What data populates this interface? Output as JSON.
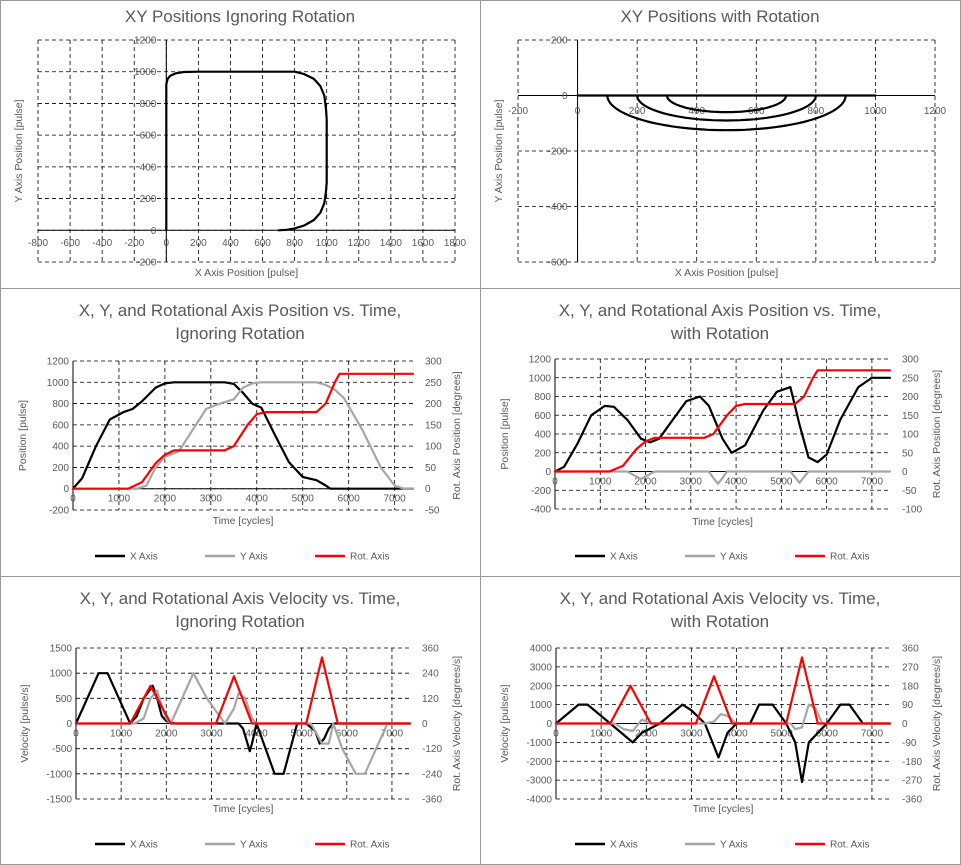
{
  "chart_data": [
    {
      "type": "line",
      "id": "xy-ignoring",
      "title": [
        "XY Positions Ignoring Rotation"
      ],
      "xlabel": "X Axis Position [pulse]",
      "ylabel": "Y Axis Position [pulse]",
      "xlim": [
        -800,
        1800
      ],
      "xticks": [
        -800,
        -600,
        -400,
        -200,
        0,
        200,
        400,
        600,
        800,
        1000,
        1200,
        1400,
        1600,
        1800
      ],
      "ylim": [
        -200,
        1200
      ],
      "yticks": [
        -200,
        0,
        200,
        400,
        600,
        800,
        1000,
        1200
      ],
      "grid": true,
      "series": [
        {
          "name": "XY Path",
          "color": "#000000",
          "x": [
            700,
            750,
            800,
            860,
            920,
            960,
            985,
            995,
            1000,
            1000,
            995,
            985,
            960,
            920,
            860,
            800,
            200,
            110,
            60,
            25,
            8,
            0,
            0
          ],
          "y": [
            0,
            3,
            12,
            30,
            65,
            110,
            170,
            240,
            300,
            700,
            770,
            850,
            910,
            955,
            985,
            1000,
            1000,
            998,
            990,
            975,
            955,
            920,
            0
          ]
        }
      ]
    },
    {
      "type": "line",
      "id": "xy-with-rotation",
      "title": [
        "XY Positions with Rotation"
      ],
      "xlabel": "X Axis Position [pulse]",
      "ylabel": "Y Axis Position [pulse]",
      "xlim": [
        -200,
        1200
      ],
      "xticks": [
        -200,
        0,
        200,
        400,
        600,
        800,
        1000,
        1200
      ],
      "ylim": [
        -600,
        200
      ],
      "yticks": [
        -600,
        -400,
        -200,
        0,
        200
      ],
      "grid": true,
      "series": [
        {
          "name": "Baseline",
          "color": "#000000",
          "x": [
            0,
            1000
          ],
          "y": [
            0,
            0
          ]
        },
        {
          "name": "Arc 300",
          "color": "#000000",
          "arc": {
            "cx": 500,
            "r": 300,
            "depth": 90
          }
        },
        {
          "name": "Arc 400",
          "color": "#000000",
          "arc": {
            "cx": 500,
            "r": 400,
            "depth": 125
          }
        },
        {
          "name": "Arc 200",
          "color": "#000000",
          "arc": {
            "cx": 500,
            "r": 200,
            "depth": 60
          }
        }
      ]
    },
    {
      "type": "line",
      "id": "pos-ignoring",
      "title": [
        "X, Y, and Rotational Axis Position vs. Time,",
        "Ignoring Rotation"
      ],
      "xlabel": "Time [cycles]",
      "ylabel": "Position [pulse]",
      "y2label": "Rot. Axis Position [degrees]",
      "xlim": [
        0,
        7400
      ],
      "xticks": [
        0,
        1000,
        2000,
        3000,
        4000,
        5000,
        6000,
        7000
      ],
      "ylim": [
        -200,
        1200
      ],
      "yticks": [
        -200,
        0,
        200,
        400,
        600,
        800,
        1000,
        1200
      ],
      "y2lim": [
        -50,
        300
      ],
      "y2ticks": [
        -50,
        0,
        50,
        100,
        150,
        200,
        250,
        300
      ],
      "grid": true,
      "legend": "bottom",
      "series": [
        {
          "name": "X Axis",
          "color": "#000000",
          "axis": "left",
          "x": [
            0,
            200,
            500,
            800,
            1100,
            1300,
            1500,
            1800,
            2000,
            2200,
            3300,
            3500,
            3700,
            3900,
            4100,
            4400,
            4700,
            5000,
            5300,
            5500,
            5600,
            7400
          ],
          "y": [
            0,
            100,
            400,
            650,
            720,
            750,
            820,
            950,
            990,
            1000,
            1000,
            985,
            900,
            800,
            760,
            500,
            250,
            110,
            80,
            30,
            0,
            0
          ]
        },
        {
          "name": "Y Axis",
          "color": "#a6a6a6",
          "axis": "left",
          "x": [
            0,
            1400,
            1600,
            1800,
            2000,
            2300,
            2600,
            2900,
            3200,
            3500,
            3700,
            3900,
            4100,
            5300,
            5500,
            5700,
            5900,
            6300,
            6700,
            7000,
            7200,
            7400
          ],
          "y": [
            0,
            0,
            30,
            200,
            300,
            350,
            550,
            750,
            800,
            840,
            950,
            990,
            1000,
            1000,
            975,
            930,
            850,
            550,
            200,
            30,
            0,
            0
          ]
        },
        {
          "name": "Rot. Axis",
          "color": "#ff0000",
          "axis": "right",
          "x": [
            0,
            1200,
            1500,
            1800,
            2000,
            2200,
            3300,
            3500,
            3800,
            4000,
            4200,
            5300,
            5500,
            5700,
            5800,
            7400
          ],
          "y": [
            0,
            0,
            15,
            60,
            80,
            90,
            90,
            100,
            150,
            175,
            180,
            180,
            200,
            250,
            270,
            270
          ]
        }
      ]
    },
    {
      "type": "line",
      "id": "pos-with-rotation",
      "title": [
        "X, Y, and Rotational Axis Position vs. Time,",
        "with Rotation"
      ],
      "xlabel": "Time [cycles]",
      "ylabel": "Position [pulse]",
      "y2label": "Rot. Axis Position [degrees]",
      "xlim": [
        0,
        7400
      ],
      "xticks": [
        0,
        1000,
        2000,
        3000,
        4000,
        5000,
        6000,
        7000
      ],
      "ylim": [
        -400,
        1200
      ],
      "yticks": [
        -400,
        -200,
        0,
        200,
        400,
        600,
        800,
        1000,
        1200
      ],
      "y2lim": [
        -100,
        300
      ],
      "y2ticks": [
        -100,
        -50,
        0,
        50,
        100,
        150,
        200,
        250,
        300
      ],
      "grid": true,
      "legend": "bottom",
      "series": [
        {
          "name": "X Axis",
          "color": "#000000",
          "axis": "left",
          "x": [
            0,
            200,
            500,
            800,
            1100,
            1300,
            1600,
            1900,
            2100,
            2300,
            2600,
            2900,
            3200,
            3400,
            3700,
            3900,
            4200,
            4600,
            4900,
            5200,
            5400,
            5600,
            5800,
            6000,
            6300,
            6700,
            7000,
            7400
          ],
          "y": [
            0,
            50,
            300,
            600,
            700,
            690,
            550,
            350,
            310,
            350,
            550,
            750,
            800,
            700,
            350,
            200,
            280,
            650,
            850,
            900,
            500,
            150,
            100,
            180,
            550,
            900,
            1000,
            1000
          ]
        },
        {
          "name": "Y Axis",
          "color": "#a6a6a6",
          "axis": "left",
          "x": [
            0,
            1600,
            1750,
            1900,
            2050,
            2200,
            3400,
            3500,
            3600,
            3700,
            3800,
            5200,
            5300,
            5400,
            5500,
            5600,
            7400
          ],
          "y": [
            0,
            0,
            -40,
            -80,
            -40,
            0,
            0,
            -70,
            -130,
            -70,
            0,
            0,
            -60,
            -120,
            -60,
            0,
            0
          ]
        },
        {
          "name": "Rot. Axis",
          "color": "#ff0000",
          "axis": "right",
          "x": [
            0,
            1200,
            1500,
            1800,
            2000,
            2200,
            3300,
            3500,
            3800,
            4000,
            4200,
            5300,
            5500,
            5700,
            5800,
            7400
          ],
          "y": [
            0,
            0,
            15,
            60,
            80,
            90,
            90,
            100,
            150,
            175,
            180,
            180,
            200,
            250,
            270,
            270
          ]
        }
      ]
    },
    {
      "type": "line",
      "id": "vel-ignoring",
      "title": [
        "X, Y, and Rotational Axis Velocity vs. Time,",
        "Ignoring Rotation"
      ],
      "xlabel": "Time [cycles]",
      "ylabel": "Velocity [pulse/s]",
      "y2label": "Rot. Axis Velocity [degrees/s]",
      "xlim": [
        0,
        7400
      ],
      "xticks": [
        0,
        1000,
        2000,
        3000,
        4000,
        5000,
        6000,
        7000
      ],
      "ylim": [
        -1500,
        1500
      ],
      "yticks": [
        -1500,
        -1000,
        -500,
        0,
        500,
        1000,
        1500
      ],
      "y2lim": [
        -360,
        360
      ],
      "y2ticks": [
        -360,
        -240,
        -120,
        0,
        120,
        240,
        360
      ],
      "grid": true,
      "legend": "bottom",
      "series": [
        {
          "name": "X Axis",
          "color": "#000000",
          "axis": "left",
          "x": [
            0,
            500,
            700,
            1200,
            1350,
            1500,
            1700,
            1800,
            1900,
            2000,
            2200,
            3600,
            3700,
            3850,
            3900,
            4000,
            4200,
            4400,
            4600,
            4900,
            5100,
            5300,
            5400,
            5500,
            5600,
            5700,
            7400
          ],
          "y": [
            0,
            1000,
            1000,
            0,
            150,
            500,
            750,
            500,
            150,
            50,
            0,
            0,
            -100,
            -550,
            -400,
            0,
            -500,
            -1000,
            -1000,
            0,
            0,
            -150,
            -400,
            -300,
            -100,
            0,
            0
          ]
        },
        {
          "name": "Y Axis",
          "color": "#a6a6a6",
          "axis": "left",
          "x": [
            0,
            1300,
            1500,
            1650,
            1800,
            1900,
            2000,
            2100,
            2600,
            2900,
            3300,
            3500,
            3600,
            3750,
            3900,
            4000,
            4200,
            5200,
            5300,
            5450,
            5600,
            5700,
            5900,
            6200,
            6400,
            6900,
            7400
          ],
          "y": [
            0,
            0,
            100,
            500,
            650,
            350,
            100,
            0,
            1000,
            500,
            0,
            300,
            600,
            500,
            100,
            0,
            0,
            0,
            -150,
            -400,
            -400,
            0,
            -500,
            -1000,
            -1000,
            0,
            0
          ]
        },
        {
          "name": "Rot. Axis",
          "color": "#ff0000",
          "axis": "right",
          "x": [
            0,
            1200,
            1650,
            2100,
            3100,
            3500,
            3900,
            5100,
            5450,
            5800,
            7400
          ],
          "y": [
            0,
            0,
            180,
            0,
            0,
            225,
            0,
            0,
            315,
            0,
            0
          ]
        }
      ]
    },
    {
      "type": "line",
      "id": "vel-with-rotation",
      "title": [
        "X, Y, and Rotational Axis Velocity vs. Time,",
        "with Rotation"
      ],
      "xlabel": "Time [cycles]",
      "ylabel": "Velocity [pulse/s]",
      "y2label": "Rot. Axis Velocity [degrees/s]",
      "xlim": [
        0,
        7400
      ],
      "xticks": [
        0,
        1000,
        2000,
        3000,
        4000,
        5000,
        6000,
        7000
      ],
      "ylim": [
        -4000,
        4000
      ],
      "yticks": [
        -4000,
        -3000,
        -2000,
        -1000,
        0,
        1000,
        2000,
        3000,
        4000
      ],
      "y2lim": [
        -360,
        360
      ],
      "y2ticks": [
        -360,
        -270,
        -180,
        -90,
        0,
        90,
        180,
        270,
        360
      ],
      "grid": true,
      "legend": "bottom",
      "series": [
        {
          "name": "X Axis",
          "color": "#000000",
          "axis": "left",
          "x": [
            0,
            500,
            700,
            1200,
            1700,
            1900,
            2300,
            2800,
            3000,
            3300,
            3600,
            3800,
            4000,
            4300,
            4500,
            4800,
            5100,
            5300,
            5450,
            5600,
            6000,
            6300,
            6500,
            6800,
            7000,
            7400
          ],
          "y": [
            0,
            1000,
            1000,
            0,
            -1000,
            -500,
            0,
            1000,
            700,
            0,
            -1800,
            -500,
            0,
            0,
            1000,
            1000,
            0,
            -1000,
            -3100,
            -1000,
            0,
            1000,
            1000,
            0,
            0,
            0
          ]
        },
        {
          "name": "Y Axis",
          "color": "#a6a6a6",
          "axis": "left",
          "x": [
            0,
            1300,
            1500,
            1700,
            1900,
            2100,
            3300,
            3500,
            3650,
            3800,
            4000,
            5200,
            5300,
            5450,
            5600,
            5750,
            5900,
            7400
          ],
          "y": [
            0,
            0,
            -300,
            -400,
            200,
            0,
            0,
            100,
            500,
            400,
            0,
            0,
            -300,
            -200,
            1000,
            800,
            0,
            0
          ]
        },
        {
          "name": "Rot. Axis",
          "color": "#ff0000",
          "axis": "right",
          "x": [
            0,
            1200,
            1650,
            2100,
            3100,
            3500,
            3900,
            5100,
            5450,
            5800,
            7400
          ],
          "y": [
            0,
            0,
            180,
            0,
            0,
            225,
            0,
            0,
            315,
            0,
            0
          ]
        }
      ]
    }
  ]
}
